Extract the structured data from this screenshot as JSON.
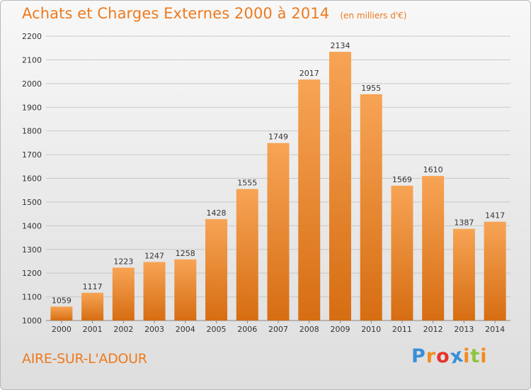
{
  "header": {
    "title": "Achats et Charges Externes 2000 à 2014",
    "subtitle": "(en milliers d'€)"
  },
  "location": "AIRE-SUR-L'ADOUR",
  "logo": {
    "text": "Proxiti",
    "letters": [
      "P",
      "r",
      "o",
      "x",
      "i",
      "t",
      "i"
    ],
    "colors": [
      "#3a8fd6",
      "#f28c1e",
      "#e4352b",
      "#3a8fd6",
      "#f28c1e",
      "#8cc63e",
      "#f28c1e"
    ]
  },
  "colors": {
    "bar_light": "#f7a455",
    "bar_dark": "#d66d12",
    "grid": "#c8c8c8",
    "axis_text": "#333333",
    "accent": "#ee7a1e"
  },
  "chart_data": {
    "type": "bar",
    "title": "Achats et Charges Externes 2000 à 2014",
    "subtitle": "(en milliers d'€)",
    "categories": [
      "2000",
      "2001",
      "2002",
      "2003",
      "2004",
      "2005",
      "2006",
      "2007",
      "2008",
      "2009",
      "2010",
      "2011",
      "2012",
      "2013",
      "2014"
    ],
    "values": [
      1059,
      1117,
      1223,
      1247,
      1258,
      1428,
      1555,
      1749,
      2017,
      2134,
      1955,
      1569,
      1610,
      1387,
      1417
    ],
    "ylim": [
      1000,
      2200
    ],
    "yticks": [
      1000,
      1100,
      1200,
      1300,
      1400,
      1500,
      1600,
      1700,
      1800,
      1900,
      2000,
      2100,
      2200
    ],
    "grid": true,
    "data_labels": true
  }
}
